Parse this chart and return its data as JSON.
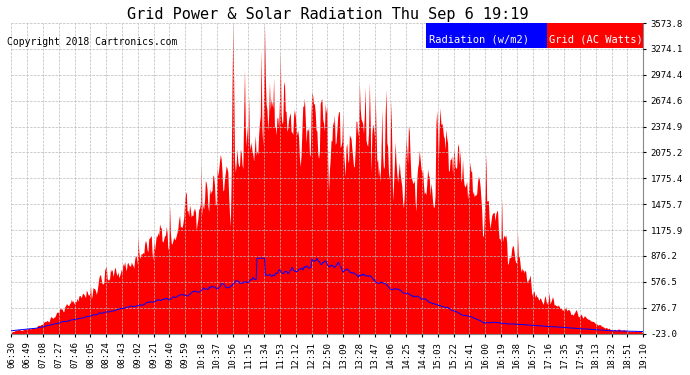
{
  "title": "Grid Power & Solar Radiation Thu Sep 6 19:19",
  "copyright": "Copyright 2018 Cartronics.com",
  "ylabel_right_ticks": [
    3573.8,
    3274.1,
    2974.4,
    2674.6,
    2374.9,
    2075.2,
    1775.4,
    1475.7,
    1175.9,
    876.2,
    576.5,
    276.7,
    -23.0
  ],
  "ymin": -23.0,
  "ymax": 3573.8,
  "bg_color": "#ffffff",
  "plot_bg_color": "#ffffff",
  "grid_color": "#bbbbbb",
  "red_fill_color": "#ff0000",
  "blue_line_color": "#0000ff",
  "legend_radiation_bg": "#0000ff",
  "legend_grid_bg": "#ff0000",
  "legend_radiation_text": "Radiation (w/m2)",
  "legend_grid_text": "Grid (AC Watts)",
  "x_tick_labels": [
    "06:30",
    "06:49",
    "07:08",
    "07:27",
    "07:46",
    "08:05",
    "08:24",
    "08:43",
    "09:02",
    "09:21",
    "09:40",
    "09:59",
    "10:18",
    "10:37",
    "10:56",
    "11:15",
    "11:34",
    "11:53",
    "12:12",
    "12:31",
    "12:50",
    "13:09",
    "13:28",
    "13:47",
    "14:06",
    "14:25",
    "14:44",
    "15:03",
    "15:22",
    "15:41",
    "16:00",
    "16:19",
    "16:38",
    "16:57",
    "17:16",
    "17:35",
    "17:54",
    "18:13",
    "18:32",
    "18:51",
    "19:10"
  ],
  "title_fontsize": 11,
  "copyright_fontsize": 7,
  "tick_fontsize": 6.5,
  "legend_fontsize": 7.5
}
